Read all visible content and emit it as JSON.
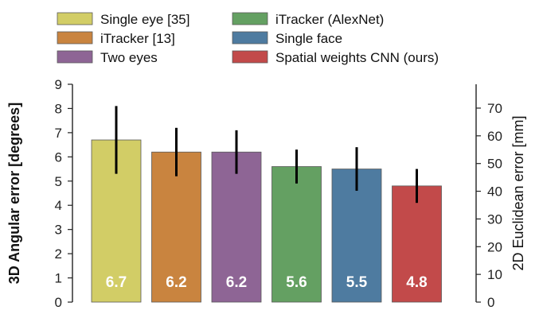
{
  "chart_data": {
    "type": "bar",
    "categories": [
      "Single eye [35]",
      "iTracker [13]",
      "Two eyes",
      "iTracker (AlexNet)",
      "Single face",
      "Spatial weights CNN (ours)"
    ],
    "series": [
      {
        "name": "",
        "values": [
          6.7,
          6.2,
          6.2,
          5.6,
          5.5,
          4.8
        ],
        "error_low": [
          5.3,
          5.2,
          5.3,
          4.9,
          4.6,
          4.1
        ],
        "error_high": [
          8.1,
          7.2,
          7.1,
          6.3,
          6.4,
          5.5
        ],
        "colors": [
          "#d2cd66",
          "#c9843f",
          "#8e6595",
          "#64a062",
          "#4e7ba0",
          "#c24a4a"
        ]
      }
    ],
    "data_labels": [
      "6.7",
      "6.2",
      "6.2",
      "5.6",
      "5.5",
      "4.8"
    ],
    "ylabel": "3D Angular error [degrees]",
    "ylim": [
      0,
      9
    ],
    "yticks": [
      "0",
      "1",
      "2",
      "3",
      "4",
      "5",
      "6",
      "7",
      "8",
      "9"
    ],
    "y2label": "2D Euclidean error [mm]",
    "y2lim": [
      0,
      78.6
    ],
    "y2ticks": [
      "0",
      "10",
      "20",
      "30",
      "40",
      "50",
      "60",
      "70"
    ],
    "legend": {
      "placement": "top",
      "entries": [
        "Single eye [35]",
        "iTracker [13]",
        "Two eyes",
        "iTracker (AlexNet)",
        "Single face",
        "Spatial weights CNN (ours)"
      ]
    },
    "grid": false
  }
}
